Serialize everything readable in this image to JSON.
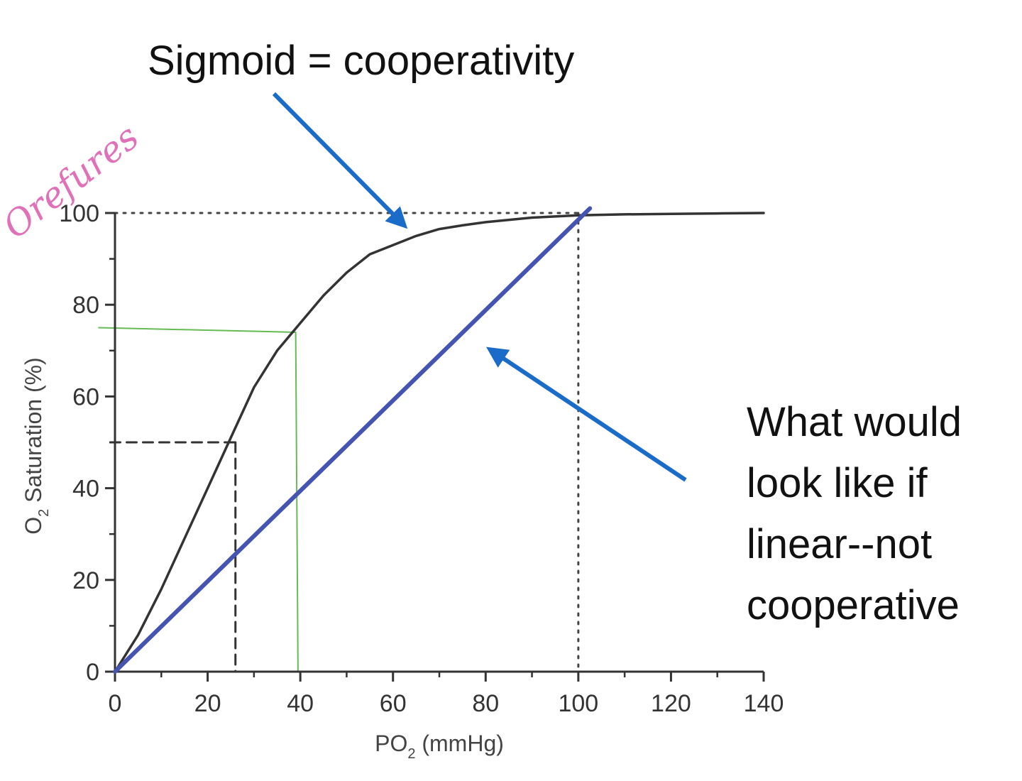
{
  "chart_data": {
    "type": "line",
    "title": "",
    "xlabel": "PO",
    "xlabel_sub": "2",
    "xlabel_unit": "(mmHg)",
    "ylabel": "O",
    "ylabel_sub": "2",
    "ylabel_rest": "Saturation (%)",
    "xlim": [
      0,
      140
    ],
    "ylim": [
      0,
      100
    ],
    "x_ticks": [
      0,
      20,
      40,
      60,
      80,
      100,
      120,
      140
    ],
    "y_ticks": [
      0,
      20,
      40,
      60,
      80,
      100
    ],
    "grid": false,
    "series": [
      {
        "style": "solid",
        "color": "#333333",
        "x": [
          0,
          5,
          10,
          15,
          20,
          25,
          30,
          35,
          40,
          45,
          50,
          55,
          60,
          65,
          70,
          75,
          80,
          90,
          100,
          110,
          120,
          130,
          140
        ],
        "y": [
          0,
          8,
          18,
          29,
          40,
          51,
          62,
          70,
          76,
          82,
          87,
          91,
          93,
          95,
          96.5,
          97.3,
          98,
          99,
          99.5,
          99.7,
          99.8,
          99.9,
          100
        ]
      },
      {
        "style": "solid",
        "color": "#4454b0",
        "x": [
          0,
          102.5
        ],
        "y": [
          0,
          101
        ]
      }
    ],
    "reference_lines": [
      {
        "style": "dotted",
        "color": "#444444",
        "points": [
          [
            0,
            100
          ],
          [
            100,
            100
          ]
        ]
      },
      {
        "style": "dotted",
        "color": "#444444",
        "points": [
          [
            100,
            100
          ],
          [
            100,
            0
          ]
        ]
      },
      {
        "style": "dashed",
        "color": "#333333",
        "points": [
          [
            -1,
            50
          ],
          [
            26,
            50
          ]
        ]
      },
      {
        "style": "dashed",
        "color": "#333333",
        "points": [
          [
            26,
            50
          ],
          [
            26,
            0
          ]
        ]
      },
      {
        "style": "solid",
        "color": "#66bb55",
        "points": [
          [
            -3.5,
            75
          ],
          [
            39,
            74
          ]
        ]
      },
      {
        "style": "solid",
        "color": "#66bb55",
        "points": [
          [
            39,
            74
          ],
          [
            39.5,
            0
          ]
        ]
      }
    ],
    "annotations": [
      {
        "text": "Sigmoid = cooperativity",
        "arrow_color": "#1a6cc8"
      },
      {
        "lines": [
          "What would",
          "look like if",
          "linear--not",
          "cooperative"
        ],
        "arrow_color": "#1a6cc8"
      }
    ],
    "handwritten_note": "Orefures",
    "handwritten_color": "#e070b8"
  }
}
